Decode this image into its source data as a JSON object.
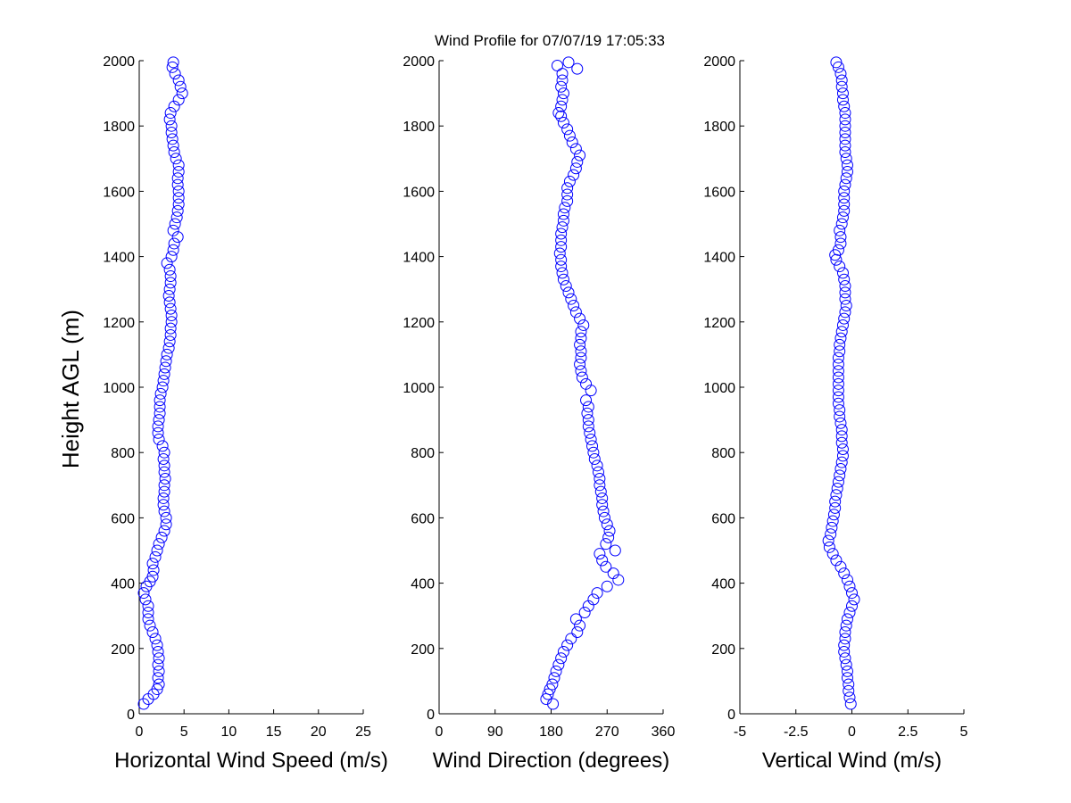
{
  "figure": {
    "title": "Wind Profile for  07/07/19 17:05:33",
    "ylabel": "Height AGL (m)"
  },
  "colors": {
    "marker": "#0000ff",
    "axis": "#000000",
    "background": "#ffffff"
  },
  "chart_data": [
    {
      "type": "scatter",
      "xlabel": "Horizontal Wind Speed (m/s)",
      "ylabel": "Height AGL (m)",
      "xlim": [
        0,
        25
      ],
      "ylim": [
        0,
        2000
      ],
      "xticks": [
        "0",
        "5",
        "10",
        "15",
        "20",
        "25"
      ],
      "yticks": [
        "0",
        "200",
        "400",
        "600",
        "800",
        "1000",
        "1200",
        "1400",
        "1600",
        "1800",
        "2000"
      ],
      "grid": false,
      "marker": "open-circle",
      "points": [
        [
          0.5,
          30
        ],
        [
          1.0,
          45
        ],
        [
          1.6,
          60
        ],
        [
          2.0,
          75
        ],
        [
          2.2,
          90
        ],
        [
          2.1,
          110
        ],
        [
          2.2,
          130
        ],
        [
          2.1,
          150
        ],
        [
          2.2,
          170
        ],
        [
          2.1,
          190
        ],
        [
          2.0,
          210
        ],
        [
          1.8,
          230
        ],
        [
          1.5,
          250
        ],
        [
          1.2,
          270
        ],
        [
          1.0,
          290
        ],
        [
          1.0,
          310
        ],
        [
          1.0,
          330
        ],
        [
          0.7,
          350
        ],
        [
          0.5,
          370
        ],
        [
          0.8,
          390
        ],
        [
          1.2,
          405
        ],
        [
          1.5,
          420
        ],
        [
          1.6,
          440
        ],
        [
          1.5,
          460
        ],
        [
          1.8,
          480
        ],
        [
          2.0,
          500
        ],
        [
          2.2,
          520
        ],
        [
          2.5,
          540
        ],
        [
          2.8,
          560
        ],
        [
          3.0,
          580
        ],
        [
          3.0,
          600
        ],
        [
          2.8,
          620
        ],
        [
          2.7,
          640
        ],
        [
          2.7,
          660
        ],
        [
          2.8,
          680
        ],
        [
          2.8,
          700
        ],
        [
          2.9,
          720
        ],
        [
          2.8,
          740
        ],
        [
          2.8,
          760
        ],
        [
          2.7,
          780
        ],
        [
          2.8,
          800
        ],
        [
          2.6,
          820
        ],
        [
          2.2,
          840
        ],
        [
          2.1,
          860
        ],
        [
          2.1,
          880
        ],
        [
          2.2,
          900
        ],
        [
          2.3,
          920
        ],
        [
          2.3,
          940
        ],
        [
          2.3,
          960
        ],
        [
          2.4,
          980
        ],
        [
          2.6,
          1000
        ],
        [
          2.7,
          1020
        ],
        [
          2.8,
          1040
        ],
        [
          2.9,
          1060
        ],
        [
          3.0,
          1080
        ],
        [
          3.1,
          1100
        ],
        [
          3.3,
          1120
        ],
        [
          3.4,
          1140
        ],
        [
          3.5,
          1160
        ],
        [
          3.5,
          1180
        ],
        [
          3.6,
          1200
        ],
        [
          3.6,
          1220
        ],
        [
          3.5,
          1240
        ],
        [
          3.4,
          1260
        ],
        [
          3.3,
          1280
        ],
        [
          3.4,
          1300
        ],
        [
          3.5,
          1320
        ],
        [
          3.5,
          1340
        ],
        [
          3.4,
          1360
        ],
        [
          3.1,
          1380
        ],
        [
          3.6,
          1400
        ],
        [
          3.8,
          1420
        ],
        [
          3.9,
          1440
        ],
        [
          4.3,
          1460
        ],
        [
          3.8,
          1480
        ],
        [
          4.0,
          1500
        ],
        [
          4.2,
          1520
        ],
        [
          4.3,
          1540
        ],
        [
          4.4,
          1560
        ],
        [
          4.4,
          1580
        ],
        [
          4.4,
          1600
        ],
        [
          4.3,
          1620
        ],
        [
          4.3,
          1640
        ],
        [
          4.4,
          1660
        ],
        [
          4.4,
          1680
        ],
        [
          4.1,
          1700
        ],
        [
          3.9,
          1720
        ],
        [
          3.8,
          1740
        ],
        [
          3.7,
          1760
        ],
        [
          3.6,
          1780
        ],
        [
          3.6,
          1800
        ],
        [
          3.4,
          1820
        ],
        [
          3.5,
          1840
        ],
        [
          3.9,
          1860
        ],
        [
          4.4,
          1880
        ],
        [
          4.8,
          1900
        ],
        [
          4.6,
          1920
        ],
        [
          4.4,
          1940
        ],
        [
          4.0,
          1960
        ],
        [
          3.7,
          1980
        ],
        [
          3.8,
          1995
        ]
      ]
    },
    {
      "type": "scatter",
      "xlabel": "Wind Direction (degrees)",
      "ylabel": "",
      "xlim": [
        0,
        360
      ],
      "ylim": [
        0,
        2000
      ],
      "xticks": [
        "0",
        "90",
        "180",
        "270",
        "360"
      ],
      "yticks": [
        "0",
        "200",
        "400",
        "600",
        "800",
        "1000",
        "1200",
        "1400",
        "1600",
        "1800",
        "2000"
      ],
      "grid": false,
      "marker": "open-circle",
      "points": [
        [
          183,
          30
        ],
        [
          172,
          45
        ],
        [
          175,
          60
        ],
        [
          178,
          75
        ],
        [
          182,
          90
        ],
        [
          185,
          110
        ],
        [
          188,
          130
        ],
        [
          192,
          150
        ],
        [
          196,
          170
        ],
        [
          200,
          190
        ],
        [
          206,
          210
        ],
        [
          212,
          230
        ],
        [
          222,
          250
        ],
        [
          226,
          270
        ],
        [
          220,
          290
        ],
        [
          234,
          310
        ],
        [
          240,
          330
        ],
        [
          248,
          350
        ],
        [
          254,
          370
        ],
        [
          270,
          390
        ],
        [
          288,
          410
        ],
        [
          280,
          430
        ],
        [
          268,
          450
        ],
        [
          262,
          470
        ],
        [
          258,
          490
        ],
        [
          283,
          500
        ],
        [
          268,
          520
        ],
        [
          272,
          540
        ],
        [
          274,
          560
        ],
        [
          270,
          580
        ],
        [
          266,
          600
        ],
        [
          264,
          620
        ],
        [
          262,
          640
        ],
        [
          262,
          660
        ],
        [
          260,
          680
        ],
        [
          258,
          700
        ],
        [
          258,
          720
        ],
        [
          256,
          740
        ],
        [
          254,
          760
        ],
        [
          250,
          780
        ],
        [
          248,
          800
        ],
        [
          246,
          820
        ],
        [
          244,
          840
        ],
        [
          242,
          860
        ],
        [
          240,
          880
        ],
        [
          240,
          900
        ],
        [
          238,
          920
        ],
        [
          240,
          940
        ],
        [
          236,
          960
        ],
        [
          244,
          990
        ],
        [
          236,
          1010
        ],
        [
          230,
          1030
        ],
        [
          228,
          1050
        ],
        [
          226,
          1070
        ],
        [
          228,
          1090
        ],
        [
          228,
          1110
        ],
        [
          226,
          1130
        ],
        [
          228,
          1150
        ],
        [
          228,
          1170
        ],
        [
          232,
          1190
        ],
        [
          226,
          1210
        ],
        [
          220,
          1230
        ],
        [
          216,
          1250
        ],
        [
          212,
          1270
        ],
        [
          208,
          1290
        ],
        [
          204,
          1310
        ],
        [
          200,
          1330
        ],
        [
          198,
          1350
        ],
        [
          196,
          1370
        ],
        [
          196,
          1390
        ],
        [
          194,
          1410
        ],
        [
          196,
          1430
        ],
        [
          196,
          1450
        ],
        [
          196,
          1470
        ],
        [
          198,
          1490
        ],
        [
          200,
          1510
        ],
        [
          200,
          1530
        ],
        [
          202,
          1550
        ],
        [
          206,
          1570
        ],
        [
          206,
          1590
        ],
        [
          206,
          1610
        ],
        [
          210,
          1630
        ],
        [
          216,
          1650
        ],
        [
          220,
          1670
        ],
        [
          222,
          1690
        ],
        [
          226,
          1710
        ],
        [
          220,
          1730
        ],
        [
          214,
          1750
        ],
        [
          210,
          1770
        ],
        [
          206,
          1790
        ],
        [
          200,
          1810
        ],
        [
          196,
          1830
        ],
        [
          192,
          1840
        ],
        [
          196,
          1860
        ],
        [
          198,
          1880
        ],
        [
          200,
          1900
        ],
        [
          196,
          1920
        ],
        [
          198,
          1940
        ],
        [
          198,
          1960
        ],
        [
          222,
          1975
        ],
        [
          190,
          1985
        ],
        [
          208,
          1995
        ]
      ]
    },
    {
      "type": "scatter",
      "xlabel": "Vertical Wind (m/s)",
      "ylabel": "",
      "xlim": [
        -5,
        5
      ],
      "ylim": [
        0,
        2000
      ],
      "xticks": [
        "-5",
        "-2.5",
        "0",
        "2.5",
        "5"
      ],
      "yticks": [
        "0",
        "200",
        "400",
        "600",
        "800",
        "1000",
        "1200",
        "1400",
        "1600",
        "1800",
        "2000"
      ],
      "grid": false,
      "marker": "open-circle",
      "points": [
        [
          -0.05,
          30
        ],
        [
          -0.1,
          50
        ],
        [
          -0.15,
          70
        ],
        [
          -0.15,
          90
        ],
        [
          -0.2,
          110
        ],
        [
          -0.2,
          130
        ],
        [
          -0.25,
          150
        ],
        [
          -0.3,
          170
        ],
        [
          -0.35,
          190
        ],
        [
          -0.35,
          210
        ],
        [
          -0.3,
          230
        ],
        [
          -0.3,
          250
        ],
        [
          -0.25,
          270
        ],
        [
          -0.2,
          290
        ],
        [
          -0.1,
          310
        ],
        [
          0.0,
          330
        ],
        [
          0.1,
          350
        ],
        [
          0.0,
          370
        ],
        [
          -0.1,
          390
        ],
        [
          -0.2,
          410
        ],
        [
          -0.35,
          430
        ],
        [
          -0.5,
          450
        ],
        [
          -0.7,
          470
        ],
        [
          -0.85,
          490
        ],
        [
          -1.0,
          510
        ],
        [
          -1.05,
          530
        ],
        [
          -0.95,
          550
        ],
        [
          -0.9,
          570
        ],
        [
          -0.85,
          590
        ],
        [
          -0.8,
          610
        ],
        [
          -0.75,
          630
        ],
        [
          -0.75,
          650
        ],
        [
          -0.7,
          670
        ],
        [
          -0.65,
          690
        ],
        [
          -0.6,
          710
        ],
        [
          -0.55,
          730
        ],
        [
          -0.5,
          750
        ],
        [
          -0.45,
          770
        ],
        [
          -0.4,
          790
        ],
        [
          -0.4,
          810
        ],
        [
          -0.45,
          830
        ],
        [
          -0.45,
          850
        ],
        [
          -0.45,
          870
        ],
        [
          -0.5,
          890
        ],
        [
          -0.55,
          910
        ],
        [
          -0.55,
          930
        ],
        [
          -0.6,
          950
        ],
        [
          -0.6,
          970
        ],
        [
          -0.6,
          990
        ],
        [
          -0.6,
          1010
        ],
        [
          -0.6,
          1030
        ],
        [
          -0.6,
          1050
        ],
        [
          -0.6,
          1070
        ],
        [
          -0.6,
          1090
        ],
        [
          -0.55,
          1110
        ],
        [
          -0.55,
          1130
        ],
        [
          -0.5,
          1150
        ],
        [
          -0.45,
          1170
        ],
        [
          -0.4,
          1190
        ],
        [
          -0.35,
          1210
        ],
        [
          -0.3,
          1230
        ],
        [
          -0.25,
          1250
        ],
        [
          -0.3,
          1270
        ],
        [
          -0.3,
          1290
        ],
        [
          -0.3,
          1310
        ],
        [
          -0.35,
          1330
        ],
        [
          -0.4,
          1350
        ],
        [
          -0.55,
          1370
        ],
        [
          -0.7,
          1390
        ],
        [
          -0.75,
          1405
        ],
        [
          -0.6,
          1420
        ],
        [
          -0.5,
          1440
        ],
        [
          -0.5,
          1460
        ],
        [
          -0.55,
          1480
        ],
        [
          -0.45,
          1500
        ],
        [
          -0.4,
          1520
        ],
        [
          -0.35,
          1540
        ],
        [
          -0.35,
          1560
        ],
        [
          -0.35,
          1580
        ],
        [
          -0.35,
          1600
        ],
        [
          -0.3,
          1620
        ],
        [
          -0.25,
          1640
        ],
        [
          -0.2,
          1660
        ],
        [
          -0.2,
          1680
        ],
        [
          -0.25,
          1700
        ],
        [
          -0.3,
          1720
        ],
        [
          -0.3,
          1740
        ],
        [
          -0.3,
          1760
        ],
        [
          -0.3,
          1780
        ],
        [
          -0.3,
          1800
        ],
        [
          -0.3,
          1820
        ],
        [
          -0.3,
          1840
        ],
        [
          -0.35,
          1860
        ],
        [
          -0.4,
          1880
        ],
        [
          -0.4,
          1900
        ],
        [
          -0.45,
          1920
        ],
        [
          -0.45,
          1940
        ],
        [
          -0.5,
          1960
        ],
        [
          -0.6,
          1980
        ],
        [
          -0.7,
          1995
        ]
      ]
    }
  ]
}
